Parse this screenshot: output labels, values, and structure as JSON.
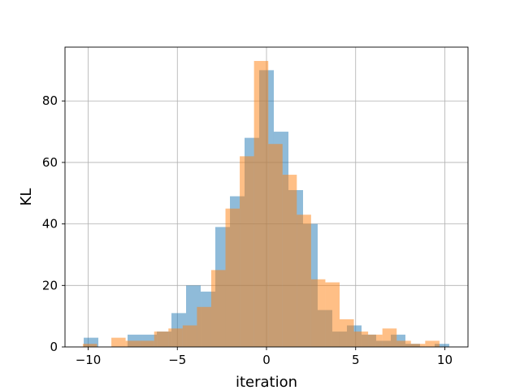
{
  "chart_data": {
    "type": "bar",
    "subtype": "overlapping-histogram",
    "title": "",
    "xlabel": "iteration",
    "ylabel": "KL",
    "xlim": [
      -11.3,
      11.3
    ],
    "ylim": [
      0,
      97.5
    ],
    "xticks": [
      -10,
      -5,
      0,
      5,
      10
    ],
    "xtick_labels": [
      "−10",
      "−5",
      "0",
      "5",
      "10"
    ],
    "yticks": [
      0,
      20,
      40,
      60,
      80
    ],
    "ytick_labels": [
      "0",
      "20",
      "40",
      "60",
      "80"
    ],
    "grid": true,
    "legend": "none",
    "series": [
      {
        "color": "#1f77b4",
        "opacity": 0.5,
        "bin_edges": [
          -10.25,
          -9.43,
          -8.61,
          -7.79,
          -6.97,
          -6.15,
          -5.33,
          -4.51,
          -3.69,
          -2.87,
          -2.05,
          -1.23,
          -0.41,
          0.41,
          1.23,
          2.05,
          2.87,
          3.69,
          4.51,
          5.33,
          6.15,
          6.97,
          7.79,
          8.61,
          9.43,
          10.25
        ],
        "counts": [
          3,
          0,
          0,
          4,
          4,
          5,
          11,
          20,
          18,
          39,
          49,
          68,
          90,
          70,
          51,
          40,
          12,
          5,
          7,
          4,
          2,
          4,
          1,
          0,
          1
        ]
      },
      {
        "color": "#ff7f0e",
        "opacity": 0.5,
        "bin_edges": [
          -10.3,
          -9.5,
          -8.7,
          -7.9,
          -7.1,
          -6.3,
          -5.5,
          -4.7,
          -3.9,
          -3.1,
          -2.3,
          -1.5,
          -0.7,
          0.1,
          0.9,
          1.7,
          2.5,
          3.3,
          4.1,
          4.9,
          5.7,
          6.5,
          7.3,
          8.1,
          8.9,
          9.7
        ],
        "counts": [
          1,
          0,
          3,
          2,
          2,
          5,
          6,
          7,
          13,
          25,
          45,
          62,
          93,
          66,
          56,
          43,
          22,
          21,
          9,
          5,
          4,
          6,
          2,
          1,
          2
        ]
      }
    ]
  }
}
